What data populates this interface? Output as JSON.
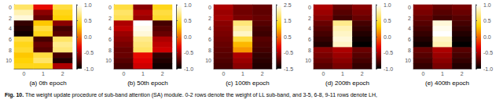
{
  "chart_data": [
    {
      "type": "heatmap",
      "title": "(a) 0th epoch",
      "annotations": [
        "Fig. 10.",
        "The weight update procedure of sub-band attention (SA) module. 0-2 rows denote the weight of LL sub-band, and 3-5, 6-8, 9-11 rows denote LH,"
      ],
      "x_categories": [
        "0",
        "1",
        "2"
      ],
      "y_categories": [
        "0",
        null,
        "2",
        null,
        "4",
        null,
        "6",
        null,
        "8",
        null,
        "10",
        null
      ],
      "values": [
        [
          0.6,
          -0.3,
          0.5
        ],
        [
          0.8,
          -0.6,
          0.4
        ],
        [
          0.9,
          -0.7,
          0.35
        ],
        [
          -0.85,
          0.3,
          -0.6
        ],
        [
          -0.9,
          0.5,
          -0.8
        ],
        [
          -0.95,
          0.4,
          -0.75
        ],
        [
          0.5,
          -0.8,
          0.6
        ],
        [
          0.4,
          -0.7,
          0.7
        ],
        [
          0.45,
          -0.75,
          0.65
        ],
        [
          0.3,
          0.5,
          -0.8
        ],
        [
          0.35,
          0.6,
          -0.9
        ],
        [
          0.4,
          0.4,
          -0.5
        ]
      ],
      "color_range": [
        -1.0,
        1.0
      ],
      "color_ticks": [
        {
          "value": -1.0,
          "label": "-1.0"
        },
        -0.5,
        {
          "value": 0.0,
          "label": "0.0"
        },
        0.5,
        {
          "value": 1.0,
          "label": "1.0"
        }
      ]
    },
    {
      "type": "heatmap",
      "title": "(b) 50th epoch",
      "x_categories": [
        "0",
        "1",
        "2"
      ],
      "y_categories": [
        "0",
        null,
        "2",
        null,
        "4",
        null,
        "6",
        null,
        "8",
        null,
        "10",
        null
      ],
      "values": [
        [
          0.5,
          -0.6,
          0.4
        ],
        [
          0.6,
          -0.5,
          0.5
        ],
        [
          0.55,
          -0.55,
          0.45
        ],
        [
          -0.5,
          1.0,
          -0.8
        ],
        [
          -0.45,
          0.95,
          -0.75
        ],
        [
          -0.55,
          0.9,
          -0.7
        ],
        [
          -0.6,
          0.7,
          -0.5
        ],
        [
          -0.65,
          0.65,
          -0.45
        ],
        [
          -0.7,
          0.6,
          -0.4
        ],
        [
          -0.7,
          -0.3,
          -0.85
        ],
        [
          -0.75,
          -0.35,
          -0.9
        ],
        [
          -0.8,
          -0.4,
          -0.95
        ]
      ],
      "color_range": [
        -1.0,
        1.0
      ],
      "color_ticks": [
        {
          "value": -1.0,
          "label": "-1.0"
        },
        -0.5,
        {
          "value": 0.0,
          "label": "0.0"
        },
        0.5,
        {
          "value": 1.0,
          "label": "1.0"
        }
      ]
    },
    {
      "type": "heatmap",
      "title": "(c) 100th epoch",
      "x_categories": [
        "0",
        "1",
        "2"
      ],
      "y_categories": [
        "0",
        null,
        "2",
        null,
        "4",
        null,
        "6",
        null,
        "8",
        null,
        "10",
        null
      ],
      "values": [
        [
          -0.5,
          -0.8,
          -0.9
        ],
        [
          -0.6,
          -0.85,
          -0.95
        ],
        [
          -0.55,
          -0.8,
          -0.9
        ],
        [
          -0.7,
          1.8,
          -1.0
        ],
        [
          -0.75,
          2.0,
          -1.1
        ],
        [
          -0.8,
          2.2,
          -1.15
        ],
        [
          -0.85,
          1.5,
          -1.0
        ],
        [
          -0.9,
          1.0,
          -1.05
        ],
        [
          -0.95,
          0.8,
          -1.1
        ],
        [
          -1.0,
          -0.5,
          -1.2
        ],
        [
          -1.05,
          -0.6,
          -1.25
        ],
        [
          -1.1,
          -0.7,
          -1.3
        ]
      ],
      "color_range": [
        -1.5,
        2.5
      ],
      "color_ticks": [
        -1.5,
        -0.5,
        0.5,
        1.5,
        2.5
      ]
    },
    {
      "type": "heatmap",
      "title": "(d) 200th epoch",
      "x_categories": [
        "0",
        "1",
        "2"
      ],
      "y_categories": [
        "0",
        null,
        "2",
        null,
        "4",
        null,
        "6",
        null,
        "8",
        null,
        "10",
        null
      ],
      "values": [
        [
          -0.5,
          -0.7,
          -0.6
        ],
        [
          -0.55,
          -0.75,
          -0.65
        ],
        [
          -0.6,
          -0.8,
          -0.7
        ],
        [
          -0.7,
          0.7,
          -0.8
        ],
        [
          -0.75,
          0.8,
          -0.85
        ],
        [
          -0.8,
          0.85,
          -0.9
        ],
        [
          -0.85,
          0.9,
          -0.95
        ],
        [
          -0.9,
          0.85,
          -1.0
        ],
        [
          -0.6,
          -0.5,
          -0.7
        ],
        [
          -0.65,
          -0.55,
          -0.75
        ],
        [
          -0.7,
          -0.6,
          -0.8
        ],
        [
          -0.75,
          -0.65,
          -0.85
        ]
      ],
      "color_range": [
        -1.0,
        1.0
      ],
      "color_ticks": [
        {
          "value": -1.0,
          "label": "-1.0"
        },
        -0.5,
        {
          "value": 0.0,
          "label": "0.0"
        },
        0.5,
        {
          "value": 1.0,
          "label": "1.0"
        }
      ]
    },
    {
      "type": "heatmap",
      "title": "(e) 400th epoch",
      "x_categories": [
        "0",
        "1",
        "2"
      ],
      "y_categories": [
        "0",
        null,
        "2",
        null,
        "4",
        null,
        "6",
        null,
        "8",
        null,
        "10",
        null
      ],
      "values": [
        [
          -0.6,
          -0.7,
          -0.65
        ],
        [
          -0.65,
          -0.75,
          -0.7
        ],
        [
          -0.7,
          -0.8,
          -0.75
        ],
        [
          -0.75,
          0.9,
          -0.8
        ],
        [
          -0.8,
          0.95,
          -0.85
        ],
        [
          -0.85,
          1.0,
          -0.9
        ],
        [
          -0.9,
          0.85,
          -0.95
        ],
        [
          -0.95,
          0.8,
          -1.0
        ],
        [
          -0.7,
          -0.5,
          -0.75
        ],
        [
          -0.75,
          -0.55,
          -0.8
        ],
        [
          -0.8,
          -0.6,
          -0.85
        ],
        [
          -0.85,
          -0.65,
          -0.9
        ]
      ],
      "color_range": [
        -1.0,
        1.0
      ],
      "color_ticks": [
        {
          "value": -1.0,
          "label": "-1.0"
        },
        -0.5,
        {
          "value": 0.0,
          "label": "0.0"
        },
        0.5,
        {
          "value": 1.0,
          "label": "1.0"
        }
      ]
    }
  ]
}
